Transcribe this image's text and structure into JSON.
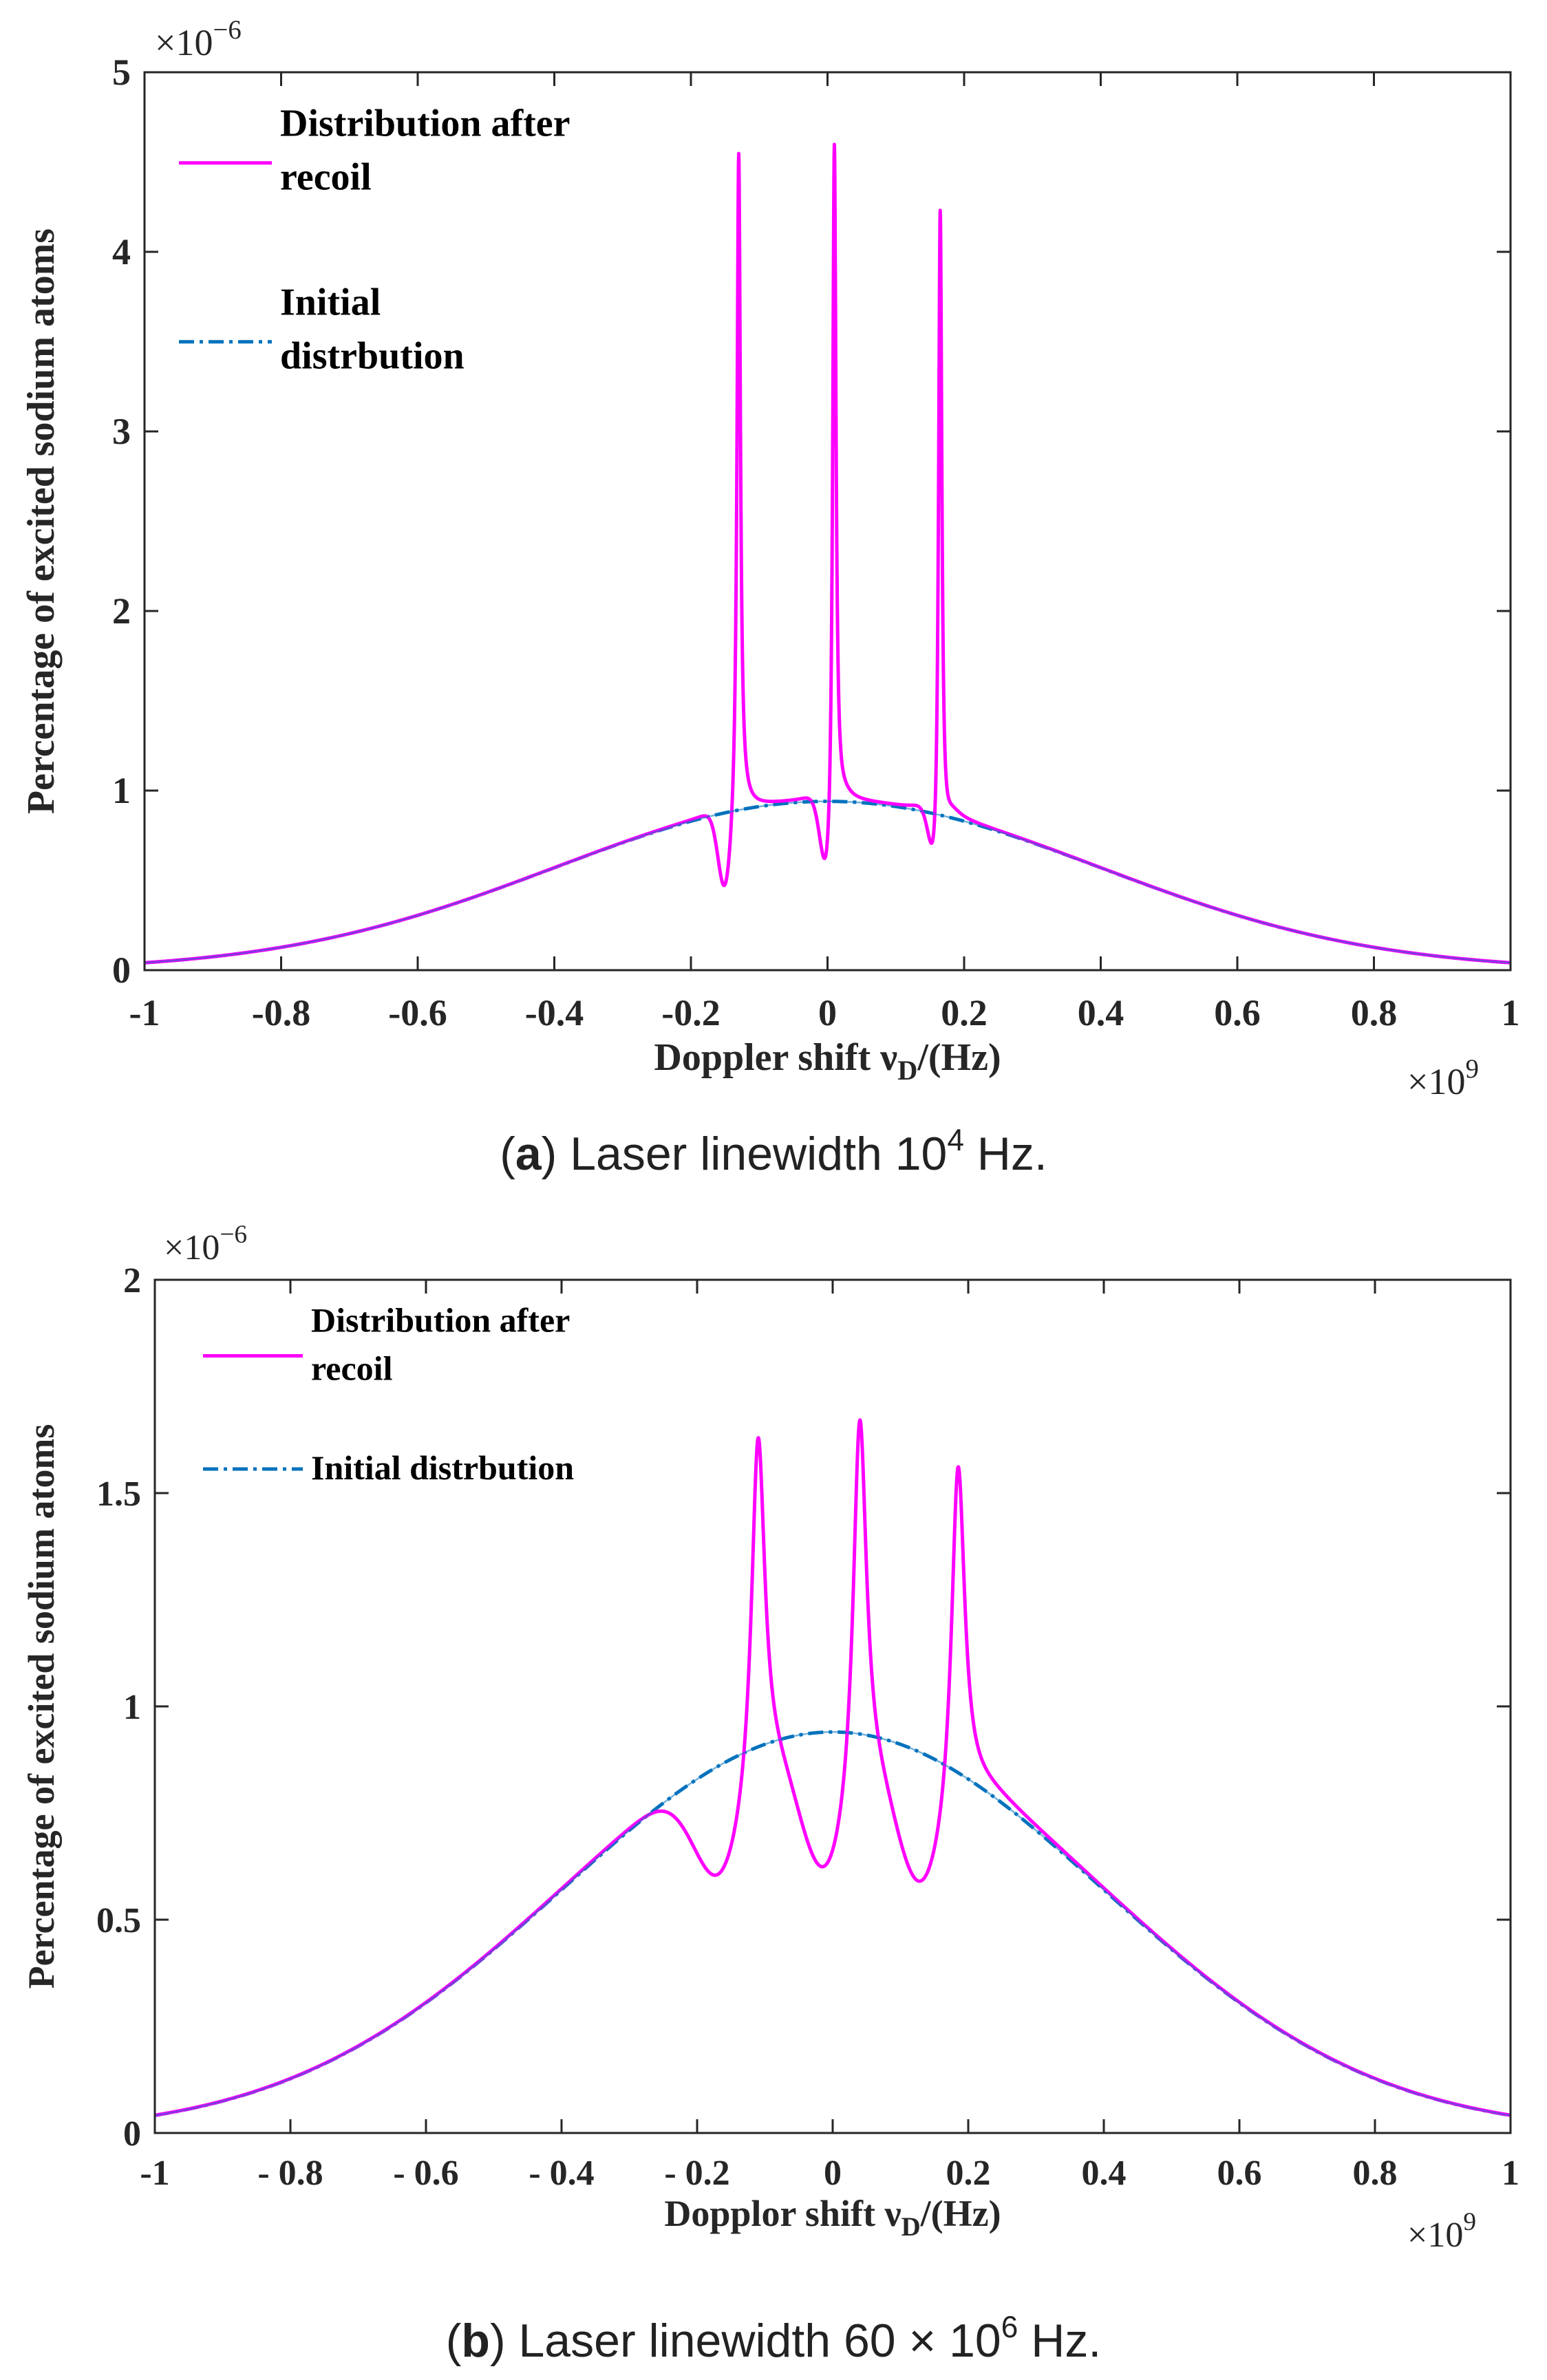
{
  "colors": {
    "recoil": "#ff00ff",
    "initial": "#0072bd",
    "axis": "#262626"
  },
  "chart_data": [
    {
      "id": "a",
      "type": "line",
      "title": "",
      "xlabel": "Doppler shift ν_D/(Hz)",
      "xlabel_main": "Doppler shift ν",
      "xlabel_sub": "D",
      "xlabel_tail": "/(Hz)",
      "ylabel": "Percentage of excited sodium atoms",
      "xlim": [
        -1,
        1
      ],
      "ylim": [
        0,
        5
      ],
      "x_multiplier": "×10",
      "x_multiplier_exp": "9",
      "y_multiplier": "×10",
      "y_multiplier_exp": "−6",
      "xticks": [
        -1,
        -0.8,
        -0.6,
        -0.4,
        -0.2,
        0,
        0.2,
        0.4,
        0.6,
        0.8,
        1
      ],
      "xtick_labels": [
        "-1",
        "-0.8",
        "-0.6",
        "-0.4",
        "-0.2",
        "0",
        "0.2",
        "0.4",
        "0.6",
        "0.8",
        "1"
      ],
      "yticks": [
        0,
        1,
        2,
        3,
        4,
        5
      ],
      "ytick_labels": [
        "0",
        "1",
        "2",
        "3",
        "4",
        "5"
      ],
      "gaussian": {
        "amplitude": 0.94,
        "sigma": 0.4
      },
      "dips": [
        {
          "center": 0.16,
          "width": 0.01,
          "factor": 0.57
        },
        {
          "center": 0.0,
          "width": 0.01,
          "factor": 0.57
        },
        {
          "center": -0.15,
          "width": 0.01,
          "factor": 0.55
        }
      ],
      "peaks": [
        {
          "center": -0.13,
          "height": 3.72,
          "width": 0.003
        },
        {
          "center": 0.01,
          "height": 3.98,
          "width": 0.003
        },
        {
          "center": 0.165,
          "height": 3.8,
          "width": 0.003
        }
      ],
      "series": [
        {
          "name": "Distribution after recoil",
          "label_lines": [
            "Distribution after",
            "recoil"
          ],
          "style": "solid"
        },
        {
          "name": "Initial distrbution",
          "label_lines": [
            "Initial",
            "distrbution"
          ],
          "style": "dashdot"
        }
      ],
      "legend_position": "top-left",
      "caption": {
        "letter": "a",
        "text": ") Laser linewidth 10",
        "exp": "4",
        "tail": " Hz."
      }
    },
    {
      "id": "b",
      "type": "line",
      "title": "",
      "xlabel": "Dopplor shift ν_D/(Hz)",
      "xlabel_main": "Dopplor shift ν",
      "xlabel_sub": "D",
      "xlabel_tail": "/(Hz)",
      "ylabel": "Percentage of excited sodium atoms",
      "xlim": [
        -1,
        1
      ],
      "ylim": [
        0,
        2
      ],
      "x_multiplier": "×10",
      "x_multiplier_exp": "9",
      "y_multiplier": "×10",
      "y_multiplier_exp": "−6",
      "xticks": [
        -1,
        -0.8,
        -0.6,
        -0.4,
        -0.2,
        0,
        0.2,
        0.4,
        0.6,
        0.8,
        1
      ],
      "xtick_labels": [
        "-1",
        "- 0.8",
        "- 0.6",
        "- 0.4",
        "- 0.2",
        "0",
        "0.2",
        "0.4",
        "0.6",
        "0.8",
        "1"
      ],
      "yticks": [
        0,
        0.5,
        1,
        1.5,
        2
      ],
      "ytick_labels": [
        "0",
        "0.5",
        "1",
        "1.5",
        "2"
      ],
      "gaussian": {
        "amplitude": 0.94,
        "sigma": 0.4
      },
      "dips": [
        {
          "center": 0.13,
          "width": 0.04,
          "factor": 0.4
        },
        {
          "center": -0.01,
          "width": 0.04,
          "factor": 0.4
        },
        {
          "center": -0.165,
          "width": 0.04,
          "factor": 0.34
        }
      ],
      "peaks": [
        {
          "center": -0.11,
          "height": 0.85,
          "width": 0.012
        },
        {
          "center": 0.04,
          "height": 0.92,
          "width": 0.012
        },
        {
          "center": 0.185,
          "height": 0.84,
          "width": 0.012
        }
      ],
      "series": [
        {
          "name": "Distribution after recoil",
          "label_lines": [
            "Distribution after",
            "recoil"
          ],
          "style": "solid"
        },
        {
          "name": "Initial distrbution",
          "label_lines": [
            "Initial distrbution"
          ],
          "style": "dashdot"
        }
      ],
      "legend_position": "top-left",
      "caption": {
        "letter": "b",
        "text": ") Laser linewidth 60 × 10",
        "exp": "6",
        "tail": " Hz."
      }
    }
  ]
}
